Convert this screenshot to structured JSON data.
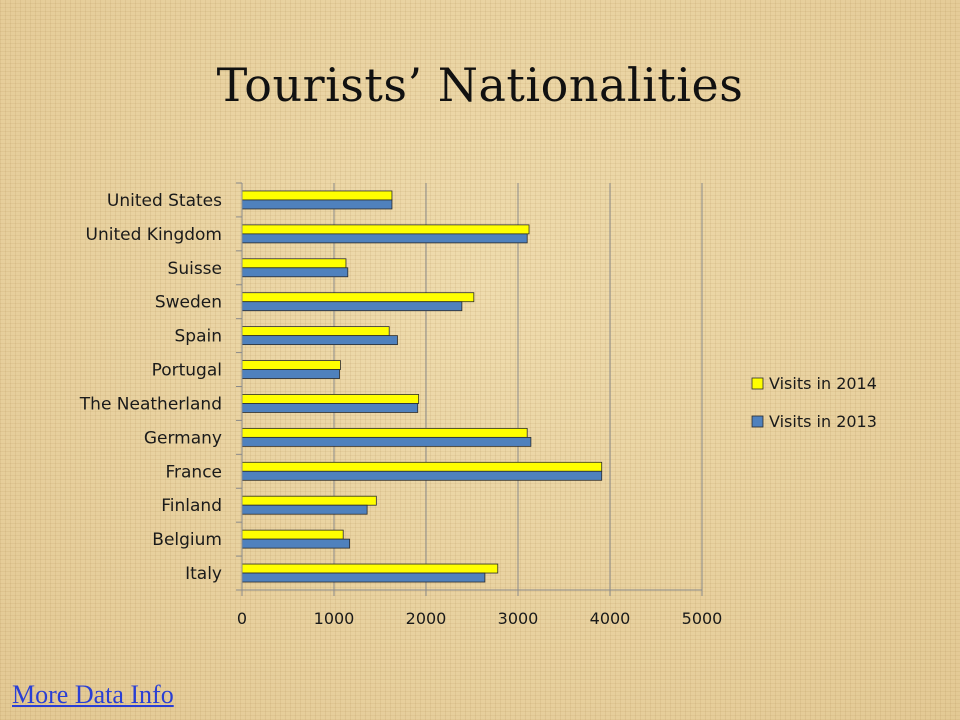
{
  "slide": {
    "title": "Tourists’ Nationalities",
    "link_label": "More Data Info"
  },
  "chart_data": {
    "type": "bar",
    "orientation": "horizontal",
    "categories": [
      "United States",
      "United Kingdom",
      "Suisse",
      "Sweden",
      "Spain",
      "Portugal",
      "The Neatherland",
      "Germany",
      "France",
      "Finland",
      "Belgium",
      "Italy"
    ],
    "series": [
      {
        "name": "Visits in 2014",
        "color": "#ffff00",
        "values": [
          1630,
          3120,
          1130,
          2520,
          1600,
          1070,
          1920,
          3100,
          3910,
          1460,
          1100,
          2780
        ]
      },
      {
        "name": "Visits in 2013",
        "color": "#4f81bd",
        "values": [
          1630,
          3100,
          1150,
          2390,
          1690,
          1060,
          1910,
          3140,
          3910,
          1360,
          1170,
          2640
        ]
      }
    ],
    "xlim": [
      0,
      5000
    ],
    "ticks": [
      "0",
      "1000",
      "2000",
      "3000",
      "4000",
      "5000"
    ],
    "grid": "vertical",
    "legend": "right"
  }
}
